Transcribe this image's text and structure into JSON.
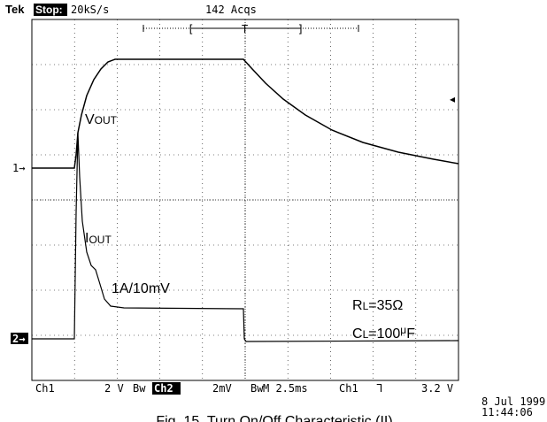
{
  "header": {
    "brand": "Tek",
    "state": "Stop:",
    "rate": "20kS/s",
    "acquisitions": "142 Acqs",
    "trigger_mark": "T",
    "bracket_left": "[",
    "bracket_right": "]"
  },
  "markers": {
    "ch1": "1→",
    "ch2": "2→"
  },
  "annotations": {
    "vout": {
      "main": "V",
      "sub": "OUT"
    },
    "iout": {
      "main": "I",
      "sub": "OUT"
    },
    "scale": "1A/10mV",
    "rl": {
      "main": "R",
      "sub": "L",
      "rest": "=35Ω"
    },
    "cl": {
      "main": "C",
      "sub": "L",
      "rest": "=100",
      "unit_mu": "μ",
      "unit": "F"
    }
  },
  "footer": {
    "ch1_label": "Ch1",
    "ch1_scale": "2 V",
    "ch2_label": "Ch2",
    "ch2_scale": "2mV",
    "timebase": "M 2.5ms",
    "trig_source": "Ch1",
    "trig_level": "3.2 V",
    "date": "8 Jul 1999",
    "time": "11:44:06"
  },
  "caption": "Fig. 15.  Turn On/Off Characteristic (II)"
}
